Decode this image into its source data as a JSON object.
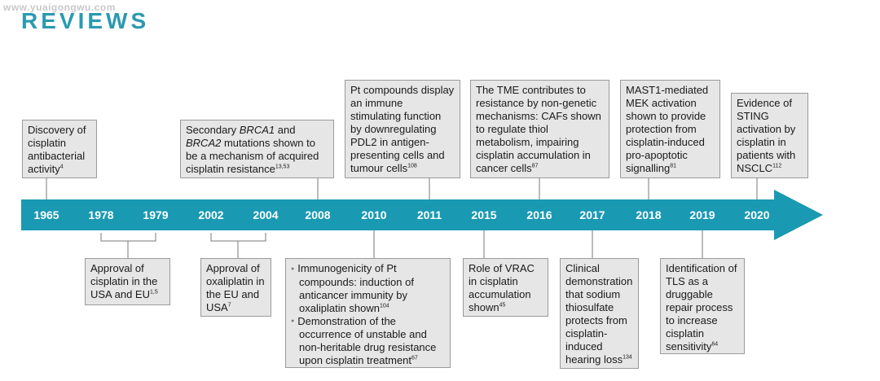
{
  "watermark": "www.yuaigongwu.com",
  "header": "REVIEWS",
  "colors": {
    "arrow": "#1a99b3",
    "box_fill": "#e6e6e6",
    "box_border": "#9a9a9a",
    "connector": "#7a7a7a",
    "header": "#2a9ab0",
    "year_text": "#ffffff"
  },
  "years": [
    "1965",
    "1978",
    "1979",
    "2002",
    "2004",
    "2008",
    "2010",
    "2011",
    "2015",
    "2016",
    "2017",
    "2018",
    "2019",
    "2020"
  ],
  "events_top": [
    {
      "year": "1965",
      "parts": [
        "Discovery of cisplatin antibacterial activity",
        "4"
      ]
    },
    {
      "year": "2008",
      "parts": [
        "Secondary ",
        "BRCA1",
        " and ",
        "BRCA2",
        " mutations shown to be a mechanism of acquired cisplatin resistance",
        "13,53"
      ]
    },
    {
      "year": "2011",
      "parts": [
        "Pt compounds display an immune stimulating function by downregulating PDL2 in antigen-presenting cells and tumour cells",
        "108"
      ]
    },
    {
      "year": "2016",
      "parts": [
        "The TME contributes to resistance by non-genetic mechanisms: CAFs shown to regulate thiol metabolism, impairing cisplatin accumulation in cancer cells",
        "87"
      ]
    },
    {
      "year": "2018",
      "parts": [
        "MAST1-mediated MEK activation shown to provide protection from cisplatin-induced pro-apoptotic signalling",
        "81"
      ]
    },
    {
      "year": "2020",
      "parts": [
        "Evidence of STING activation by cisplatin in patients with NSCLC",
        "112"
      ]
    }
  ],
  "events_bottom": [
    {
      "year": "1978–1979",
      "parts": [
        "Approval of cisplatin in the USA and EU",
        "1,5"
      ]
    },
    {
      "year": "2002–2004",
      "parts": [
        "Approval of oxaliplatin in the EU and USA",
        "7"
      ]
    },
    {
      "year": "2010",
      "bullets": [
        [
          "Immunogenicity of Pt compounds: induction of anticancer immunity by oxaliplatin shown",
          "104"
        ],
        [
          "Demonstration of the occurrence of unstable and non-heritable drug resistance upon cisplatin treatment",
          "67"
        ]
      ]
    },
    {
      "year": "2015",
      "parts": [
        "Role of VRAC in cisplatin accumulation shown",
        "45"
      ]
    },
    {
      "year": "2017",
      "parts": [
        "Clinical demonstration that sodium thiosulfate protects from cisplatin-induced hearing loss",
        "134"
      ]
    },
    {
      "year": "2019",
      "parts": [
        "Identification of TLS as a druggable repair process to increase cisplatin sensitivity",
        "64"
      ]
    }
  ]
}
